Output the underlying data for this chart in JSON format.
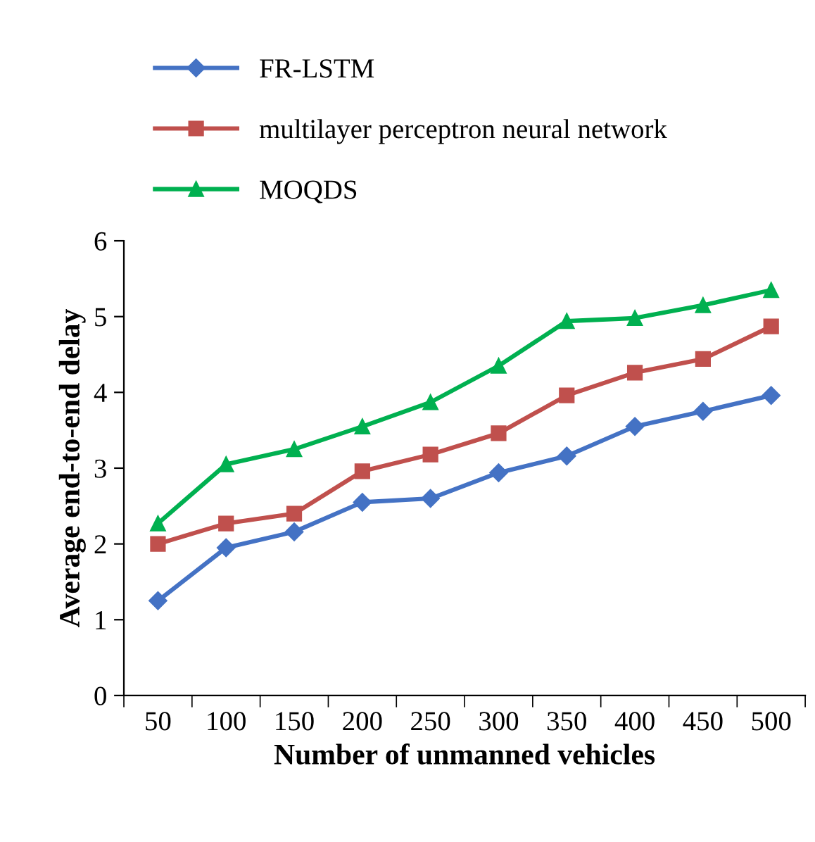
{
  "chart_data": {
    "type": "line",
    "xlabel": "Number of unmanned vehicles",
    "ylabel": "Average end-to-end delay",
    "categories": [
      "50",
      "100",
      "150",
      "200",
      "250",
      "300",
      "350",
      "400",
      "450",
      "500"
    ],
    "series": [
      {
        "name": "FR-LSTM",
        "color": "#4472c4",
        "marker": "diamond",
        "values": [
          1.25,
          1.95,
          2.16,
          2.55,
          2.6,
          2.94,
          3.16,
          3.55,
          3.75,
          3.96
        ]
      },
      {
        "name": "multilayer perceptron neural network",
        "color": "#c0504d",
        "marker": "square",
        "values": [
          2.0,
          2.27,
          2.4,
          2.96,
          3.18,
          3.46,
          3.96,
          4.26,
          4.44,
          4.87
        ]
      },
      {
        "name": "MOQDS",
        "color": "#00b050",
        "marker": "triangle",
        "values": [
          2.27,
          3.05,
          3.25,
          3.55,
          3.87,
          4.35,
          4.94,
          4.98,
          5.15,
          5.35
        ]
      }
    ],
    "ylim": [
      0,
      6
    ],
    "yticks": [
      0,
      1,
      2,
      3,
      4,
      5,
      6
    ],
    "grid": false,
    "legend": "top",
    "line_style": "solid"
  }
}
